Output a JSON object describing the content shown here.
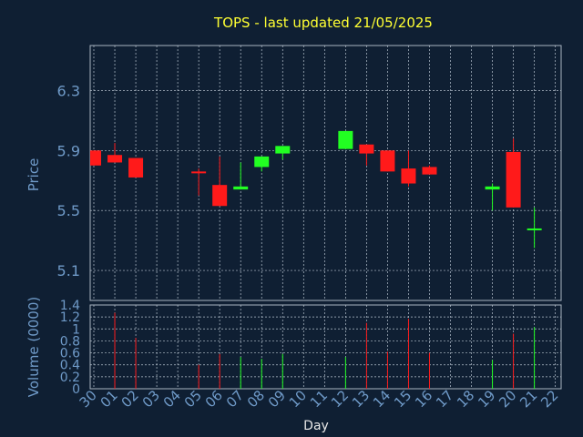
{
  "chart_data": {
    "type": "candlestick",
    "title": "TOPS - last updated 21/05/2025",
    "xlabel": "Day",
    "colors": {
      "up": "#22ff22",
      "down": "#ff1a1a",
      "title": "#ffff33",
      "axis_text": "#6f9ac8",
      "background": "#0f1f33"
    },
    "price_panel": {
      "ylabel": "Price",
      "ylim": [
        4.9,
        6.6
      ],
      "yticks": [
        "6.3",
        "5.9",
        "5.5",
        "5.1"
      ],
      "ytick_values": [
        6.3,
        5.9,
        5.5,
        5.1
      ],
      "grid": true
    },
    "volume_panel": {
      "ylabel": "Volume (0000)",
      "ylim": [
        0,
        1.4
      ],
      "yticks": [
        "1.4",
        "1.2",
        "1",
        "0.8",
        "0.6",
        "0.4",
        "0.2",
        "0"
      ],
      "ytick_values": [
        1.4,
        1.2,
        1.0,
        0.8,
        0.6,
        0.4,
        0.2,
        0
      ],
      "grid": true
    },
    "categories": [
      "30",
      "01",
      "02",
      "03",
      "04",
      "05",
      "06",
      "07",
      "08",
      "09",
      "10",
      "11",
      "12",
      "13",
      "14",
      "15",
      "16",
      "17",
      "18",
      "19",
      "20",
      "21",
      "22"
    ],
    "candles": [
      {
        "day": "30",
        "open": 5.9,
        "high": 5.9,
        "low": 5.8,
        "close": 5.8,
        "volume": 0,
        "dir": "down"
      },
      {
        "day": "01",
        "open": 5.87,
        "high": 5.95,
        "low": 5.82,
        "close": 5.82,
        "volume": 1.27,
        "dir": "down"
      },
      {
        "day": "02",
        "open": 5.85,
        "high": 5.85,
        "low": 5.72,
        "close": 5.72,
        "volume": 0.85,
        "dir": "down"
      },
      {
        "day": "05",
        "open": 5.76,
        "high": 5.78,
        "low": 5.6,
        "close": 5.75,
        "volume": 0.4,
        "dir": "down"
      },
      {
        "day": "06",
        "open": 5.67,
        "high": 5.86,
        "low": 5.53,
        "close": 5.53,
        "volume": 0.58,
        "dir": "down"
      },
      {
        "day": "07",
        "open": 5.64,
        "high": 5.82,
        "low": 5.64,
        "close": 5.66,
        "volume": 0.53,
        "dir": "up"
      },
      {
        "day": "08",
        "open": 5.79,
        "high": 5.86,
        "low": 5.76,
        "close": 5.86,
        "volume": 0.5,
        "dir": "up"
      },
      {
        "day": "09",
        "open": 5.88,
        "high": 5.93,
        "low": 5.84,
        "close": 5.93,
        "volume": 0.58,
        "dir": "up"
      },
      {
        "day": "12",
        "open": 5.91,
        "high": 6.03,
        "low": 5.91,
        "close": 6.03,
        "volume": 0.53,
        "dir": "up"
      },
      {
        "day": "13",
        "open": 5.94,
        "high": 5.94,
        "low": 5.8,
        "close": 5.88,
        "volume": 1.1,
        "dir": "down"
      },
      {
        "day": "14",
        "open": 5.9,
        "high": 5.9,
        "low": 5.76,
        "close": 5.76,
        "volume": 0.62,
        "dir": "down"
      },
      {
        "day": "15",
        "open": 5.78,
        "high": 5.9,
        "low": 5.66,
        "close": 5.68,
        "volume": 1.17,
        "dir": "down"
      },
      {
        "day": "16",
        "open": 5.79,
        "high": 5.8,
        "low": 5.74,
        "close": 5.74,
        "volume": 0.6,
        "dir": "down"
      },
      {
        "day": "19",
        "open": 5.64,
        "high": 5.68,
        "low": 5.5,
        "close": 5.66,
        "volume": 0.48,
        "dir": "up"
      },
      {
        "day": "20",
        "open": 5.89,
        "high": 5.98,
        "low": 5.52,
        "close": 5.52,
        "volume": 0.92,
        "dir": "down"
      },
      {
        "day": "21",
        "open": 5.37,
        "high": 5.52,
        "low": 5.25,
        "close": 5.38,
        "volume": 1.03,
        "dir": "up"
      }
    ]
  }
}
